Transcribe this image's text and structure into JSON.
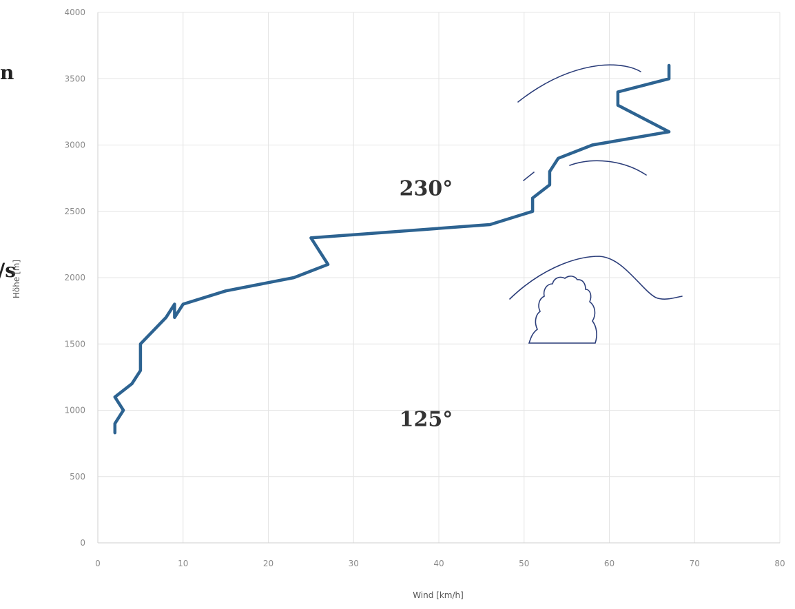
{
  "chart_data": {
    "type": "line",
    "title": "",
    "xlabel": "Wind [km/h]",
    "ylabel": "Höhe [m]",
    "xlim": [
      0,
      80
    ],
    "ylim": [
      0,
      4000
    ],
    "xticks": [
      "0",
      "10",
      "20",
      "30",
      "40",
      "50",
      "60",
      "70",
      "80"
    ],
    "yticks": [
      "0",
      "500",
      "1000",
      "1500",
      "2000",
      "2500",
      "3000",
      "3500",
      "4000"
    ],
    "grid": true,
    "series": [
      {
        "color": "#2d6391",
        "points": [
          [
            2,
            830
          ],
          [
            2,
            900
          ],
          [
            3,
            1000
          ],
          [
            2,
            1100
          ],
          [
            4,
            1200
          ],
          [
            5,
            1300
          ],
          [
            5,
            1500
          ],
          [
            8,
            1700
          ],
          [
            9,
            1800
          ],
          [
            9,
            1700
          ],
          [
            10,
            1800
          ],
          [
            15,
            1900
          ],
          [
            23,
            2000
          ],
          [
            27,
            2100
          ],
          [
            25,
            2300
          ],
          [
            46,
            2400
          ],
          [
            51,
            2500
          ],
          [
            51,
            2600
          ],
          [
            53,
            2700
          ],
          [
            53,
            2800
          ],
          [
            54,
            2900
          ],
          [
            58,
            3000
          ],
          [
            67,
            3100
          ],
          [
            61,
            3300
          ],
          [
            61,
            3400
          ],
          [
            67,
            3500
          ],
          [
            67,
            3600
          ]
        ]
      }
    ],
    "annotations": [
      {
        "text": "230°",
        "x": 38.5,
        "y": 2620
      },
      {
        "text": "125°",
        "x": 38.5,
        "y": 880
      }
    ]
  },
  "clipped_text": {
    "top": "n",
    "middle": "/s"
  }
}
